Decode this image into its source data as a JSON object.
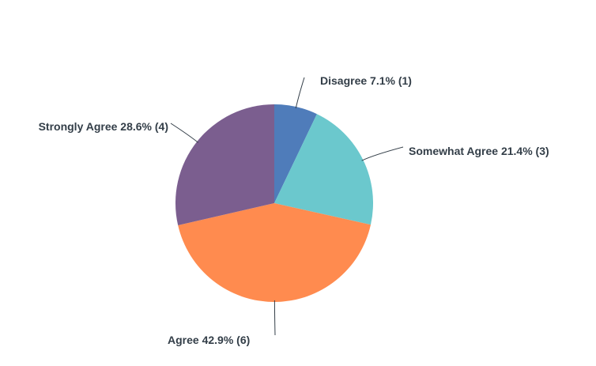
{
  "chart_data": {
    "type": "pie",
    "title": "",
    "start": "top",
    "direction": "clockwise",
    "slices": [
      {
        "label": "Disagree 7.1% (1)",
        "category": "Disagree",
        "percent": 7.1,
        "count": 1,
        "color": "#4f7cba"
      },
      {
        "label": "Somewhat Agree 21.4% (3)",
        "category": "Somewhat Agree",
        "percent": 21.4,
        "count": 3,
        "color": "#6bc8cd"
      },
      {
        "label": "Agree 42.9% (6)",
        "category": "Agree",
        "percent": 42.9,
        "count": 6,
        "color": "#ff8b4f"
      },
      {
        "label": "Strongly Agree 28.6% (4)",
        "category": "Strongly Agree",
        "percent": 28.6,
        "count": 4,
        "color": "#7b5e8f"
      }
    ]
  }
}
